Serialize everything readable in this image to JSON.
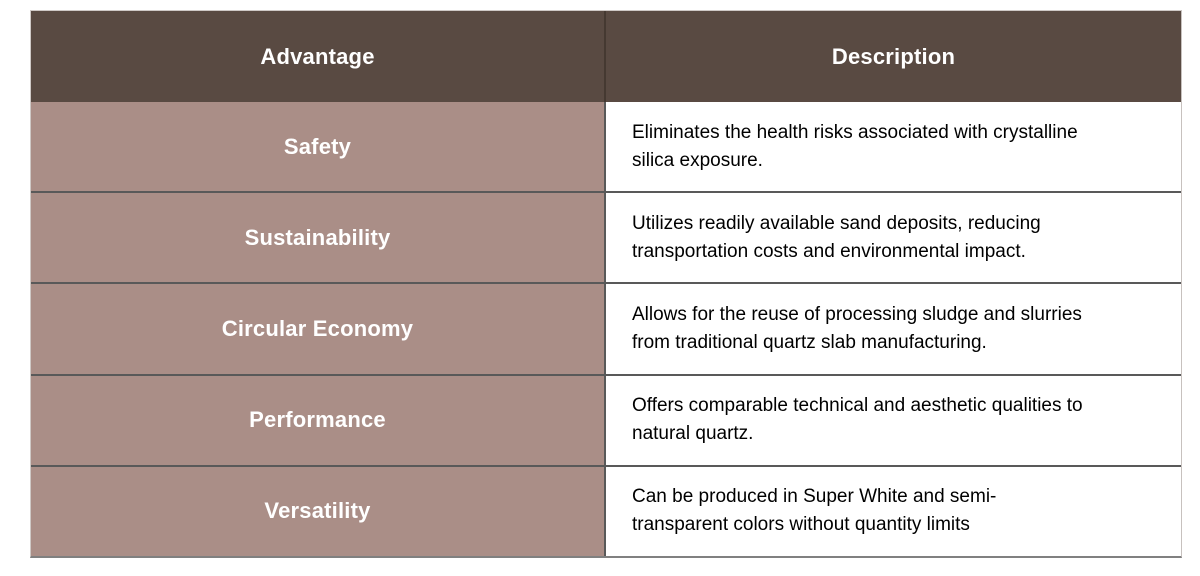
{
  "table": {
    "columns": [
      {
        "label": "Advantage"
      },
      {
        "label": "Description"
      }
    ],
    "rows": [
      {
        "advantage": "Safety",
        "description": "Eliminates the health risks associated with crystalline silica exposure."
      },
      {
        "advantage": "Sustainability",
        "description": "Utilizes readily available sand deposits, reducing transportation costs and environmental impact."
      },
      {
        "advantage": "Circular Economy",
        "description": "Allows for the reuse of processing sludge and slurries from traditional quartz slab manufacturing."
      },
      {
        "advantage": "Performance",
        "description": "Offers comparable technical and aesthetic qualities to natural quartz."
      },
      {
        "advantage": "Versatility",
        "description": "Can be produced in Super White and semi-transparent colors without quantity limits"
      }
    ],
    "colors": {
      "header_bg": "#594a42",
      "header_text": "#ffffff",
      "advantage_bg": "#aa8e87",
      "advantage_text": "#ffffff",
      "description_bg": "#ffffff",
      "description_text": "#000000",
      "row_divider": "#595959",
      "outer_border_light": "#cfc9c6",
      "outer_border_bottom": "#808080",
      "page_bg": "#ffffff"
    }
  }
}
